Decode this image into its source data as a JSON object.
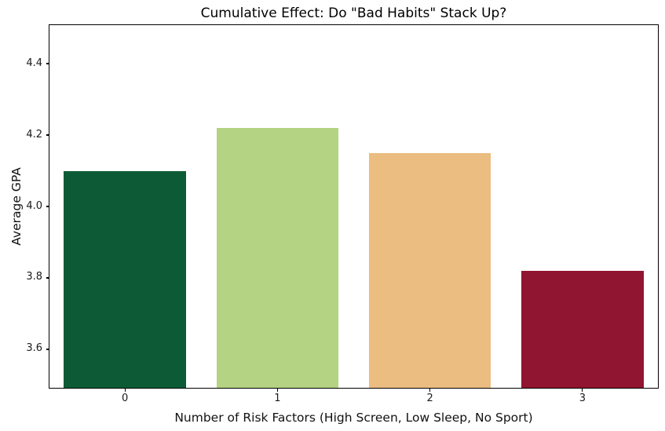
{
  "chart_data": {
    "type": "bar",
    "title": "Cumulative Effect: Do \"Bad Habits\" Stack Up?",
    "xlabel": "Number of Risk Factors (High Screen, Low Sleep, No Sport)",
    "ylabel": "Average GPA",
    "categories": [
      "0",
      "1",
      "2",
      "3"
    ],
    "values": [
      4.1,
      4.22,
      4.15,
      3.82
    ],
    "bar_colors": [
      "#0d5b36",
      "#b4d383",
      "#ebbd81",
      "#901531"
    ],
    "ylim": [
      3.49,
      4.51
    ],
    "yticks": [
      3.6,
      3.8,
      4.0,
      4.2,
      4.4
    ],
    "ytick_labels": [
      "3.6",
      "3.8",
      "4.0",
      "4.2",
      "4.4"
    ],
    "grid": false,
    "legend_position": "none",
    "background_color": "#ffffff",
    "spine_color": "#000000",
    "bar_width_fraction": 0.8
  }
}
